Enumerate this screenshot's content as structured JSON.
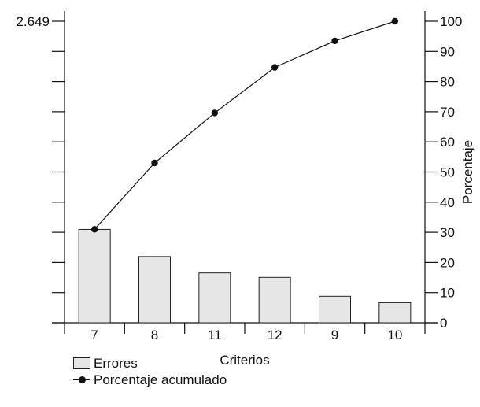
{
  "chart_data": {
    "type": "bar",
    "categories": [
      "7",
      "8",
      "11",
      "12",
      "9",
      "10"
    ],
    "series": [
      {
        "name": "Errores",
        "kind": "bar",
        "axis": "left",
        "values": [
          820,
          582,
          438,
          399,
          233,
          177
        ]
      },
      {
        "name": "Porcentaje acumulado",
        "kind": "line",
        "axis": "right",
        "values": [
          31,
          53,
          69.6,
          84.7,
          93.5,
          100
        ]
      }
    ],
    "xlabel": "Criterios",
    "ylabel_right": "Porcentaje",
    "left_axis": {
      "ylim": [
        0,
        2649
      ],
      "top_label": "2.649",
      "tick_count": 10
    },
    "right_axis": {
      "ylim": [
        0,
        100
      ],
      "ticks": [
        0,
        10,
        20,
        30,
        40,
        50,
        60,
        70,
        80,
        90,
        100
      ]
    },
    "grid": false,
    "legend_position": "bottom-left",
    "colors": {
      "bar_fill": "#e6e6e6",
      "bar_stroke": "#222222",
      "line": "#111111"
    }
  },
  "legend": {
    "bar_label": "Errores",
    "line_label": "Porcentaje acumulado"
  }
}
